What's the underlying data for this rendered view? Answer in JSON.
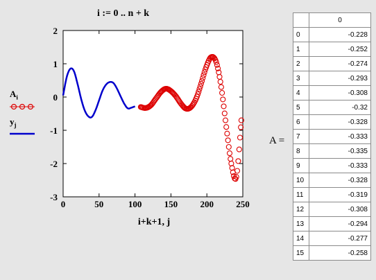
{
  "formula": "i := 0 .. n + k",
  "legend": {
    "series_a": "A",
    "series_a_sub": "i",
    "series_y": "y",
    "series_y_sub": "j"
  },
  "matrix": {
    "name_label": "A =",
    "column_header": "0",
    "rows": [
      {
        "index": "0",
        "value": "-0.228"
      },
      {
        "index": "1",
        "value": "-0.252"
      },
      {
        "index": "2",
        "value": "-0.274"
      },
      {
        "index": "3",
        "value": "-0.293"
      },
      {
        "index": "4",
        "value": "-0.308"
      },
      {
        "index": "5",
        "value": "-0.32"
      },
      {
        "index": "6",
        "value": "-0.328"
      },
      {
        "index": "7",
        "value": "-0.333"
      },
      {
        "index": "8",
        "value": "-0.335"
      },
      {
        "index": "9",
        "value": "-0.333"
      },
      {
        "index": "10",
        "value": "-0.328"
      },
      {
        "index": "11",
        "value": "-0.319"
      },
      {
        "index": "12",
        "value": "-0.308"
      },
      {
        "index": "13",
        "value": "-0.294"
      },
      {
        "index": "14",
        "value": "-0.277"
      },
      {
        "index": "15",
        "value": "-0.258"
      }
    ]
  },
  "colors": {
    "series_y": "#0000cc",
    "series_a": "#dd0000",
    "plot_bg": "#ffffff",
    "page_bg": "#e6e6e6"
  },
  "chart_data": {
    "type": "line",
    "xlabel": "i+k+1, j",
    "xlim": [
      0,
      250
    ],
    "ylim": [
      -3,
      2
    ],
    "x_ticks": [
      "0",
      "50",
      "100",
      "150",
      "200",
      "250"
    ],
    "y_ticks": [
      "2",
      "1",
      "0",
      "-1",
      "-2",
      "-3"
    ],
    "series": [
      {
        "key": "y",
        "style": "line",
        "x": [
          0,
          5,
          10,
          15,
          20,
          25,
          30,
          35,
          40,
          45,
          50,
          55,
          60,
          65,
          70,
          75,
          80,
          85,
          90,
          95,
          100
        ],
        "y": [
          0.05,
          0.6,
          0.85,
          0.78,
          0.4,
          -0.05,
          -0.4,
          -0.58,
          -0.6,
          -0.4,
          -0.1,
          0.2,
          0.38,
          0.45,
          0.42,
          0.25,
          0.02,
          -0.2,
          -0.34,
          -0.32,
          -0.28
        ]
      },
      {
        "key": "A",
        "style": "markers",
        "marker": "circle",
        "x": [
          108,
          115,
          122,
          129,
          136,
          143,
          150,
          157,
          164,
          171,
          178,
          185,
          192,
          199,
          206,
          213,
          220,
          227,
          234,
          241,
          248
        ],
        "y": [
          -0.3,
          -0.33,
          -0.25,
          -0.05,
          0.15,
          0.25,
          0.18,
          0.02,
          -0.2,
          -0.35,
          -0.3,
          -0.05,
          0.4,
          0.9,
          1.2,
          1.05,
          0.3,
          -0.9,
          -2.0,
          -2.4,
          -0.7
        ]
      }
    ]
  }
}
